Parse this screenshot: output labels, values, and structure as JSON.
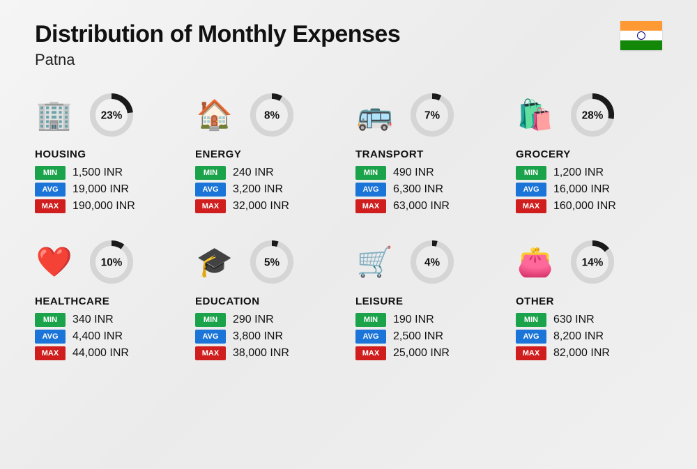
{
  "title": "Distribution of Monthly Expenses",
  "subtitle": "Patna",
  "currency": "INR",
  "badges": {
    "min": "MIN",
    "avg": "AVG",
    "max": "MAX"
  },
  "colors": {
    "min_badge": "#1aa34a",
    "avg_badge": "#1b74d8",
    "max_badge": "#d01e1e",
    "donut_fill": "#1a1a1a",
    "donut_track": "#d5d5d5",
    "text": "#111111",
    "background": "#f2f2f2"
  },
  "flag": {
    "saffron": "#ff9933",
    "white": "#ffffff",
    "green": "#138808",
    "chakra": "#000080"
  },
  "donut": {
    "radius": 30,
    "stroke_width": 9,
    "font_size": 17
  },
  "categories": [
    {
      "name": "HOUSING",
      "percent": 23,
      "min": "1,500 INR",
      "avg": "19,000 INR",
      "max": "190,000 INR",
      "icon": "🏢"
    },
    {
      "name": "ENERGY",
      "percent": 8,
      "min": "240 INR",
      "avg": "3,200 INR",
      "max": "32,000 INR",
      "icon": "🏠"
    },
    {
      "name": "TRANSPORT",
      "percent": 7,
      "min": "490 INR",
      "avg": "6,300 INR",
      "max": "63,000 INR",
      "icon": "🚌"
    },
    {
      "name": "GROCERY",
      "percent": 28,
      "min": "1,200 INR",
      "avg": "16,000 INR",
      "max": "160,000 INR",
      "icon": "🛍️"
    },
    {
      "name": "HEALTHCARE",
      "percent": 10,
      "min": "340 INR",
      "avg": "4,400 INR",
      "max": "44,000 INR",
      "icon": "❤️"
    },
    {
      "name": "EDUCATION",
      "percent": 5,
      "min": "290 INR",
      "avg": "3,800 INR",
      "max": "38,000 INR",
      "icon": "🎓"
    },
    {
      "name": "LEISURE",
      "percent": 4,
      "min": "190 INR",
      "avg": "2,500 INR",
      "max": "25,000 INR",
      "icon": "🛒"
    },
    {
      "name": "OTHER",
      "percent": 14,
      "min": "630 INR",
      "avg": "8,200 INR",
      "max": "82,000 INR",
      "icon": "👛"
    }
  ]
}
